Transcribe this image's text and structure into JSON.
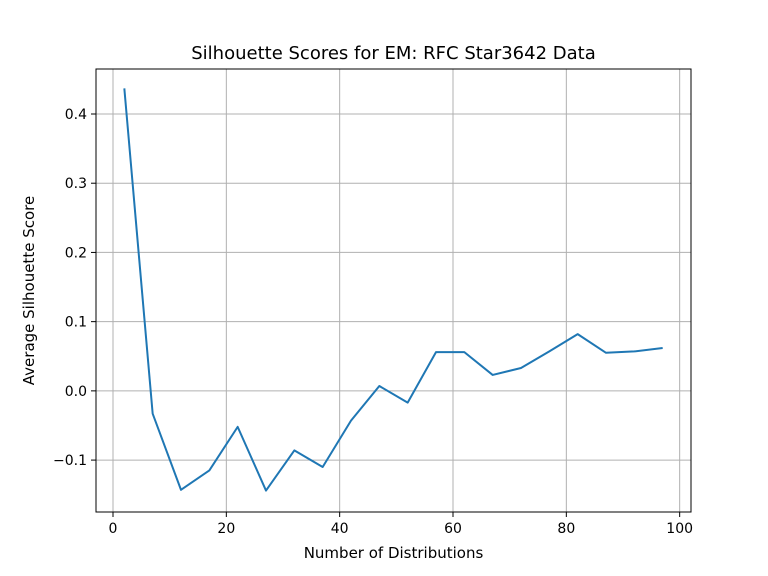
{
  "chart_data": {
    "type": "line",
    "title": "Silhouette Scores for EM: RFC Star3642 Data",
    "xlabel": "Number of Distributions",
    "ylabel": "Average Silhouette Score",
    "xlim": [
      -3,
      102
    ],
    "ylim": [
      -0.175,
      0.465
    ],
    "xticks": [
      0,
      20,
      40,
      60,
      80,
      100
    ],
    "yticks": [
      -0.1,
      0.0,
      0.1,
      0.2,
      0.3,
      0.4
    ],
    "xtick_labels": [
      "0",
      "20",
      "40",
      "60",
      "80",
      "100"
    ],
    "ytick_labels": [
      "−0.1",
      "0.0",
      "0.1",
      "0.2",
      "0.3",
      "0.4"
    ],
    "grid": true,
    "line_color": "#1f77b4",
    "series": [
      {
        "x": [
          2,
          7,
          12,
          17,
          22,
          27,
          32,
          37,
          42,
          47,
          52,
          57,
          62,
          67,
          72,
          77,
          82,
          87,
          92,
          97
        ],
        "y": [
          0.437,
          -0.033,
          -0.143,
          -0.115,
          -0.052,
          -0.144,
          -0.086,
          -0.11,
          -0.043,
          0.007,
          -0.017,
          0.056,
          0.056,
          0.023,
          0.033,
          0.057,
          0.082,
          0.055,
          0.057,
          0.062
        ]
      }
    ]
  }
}
